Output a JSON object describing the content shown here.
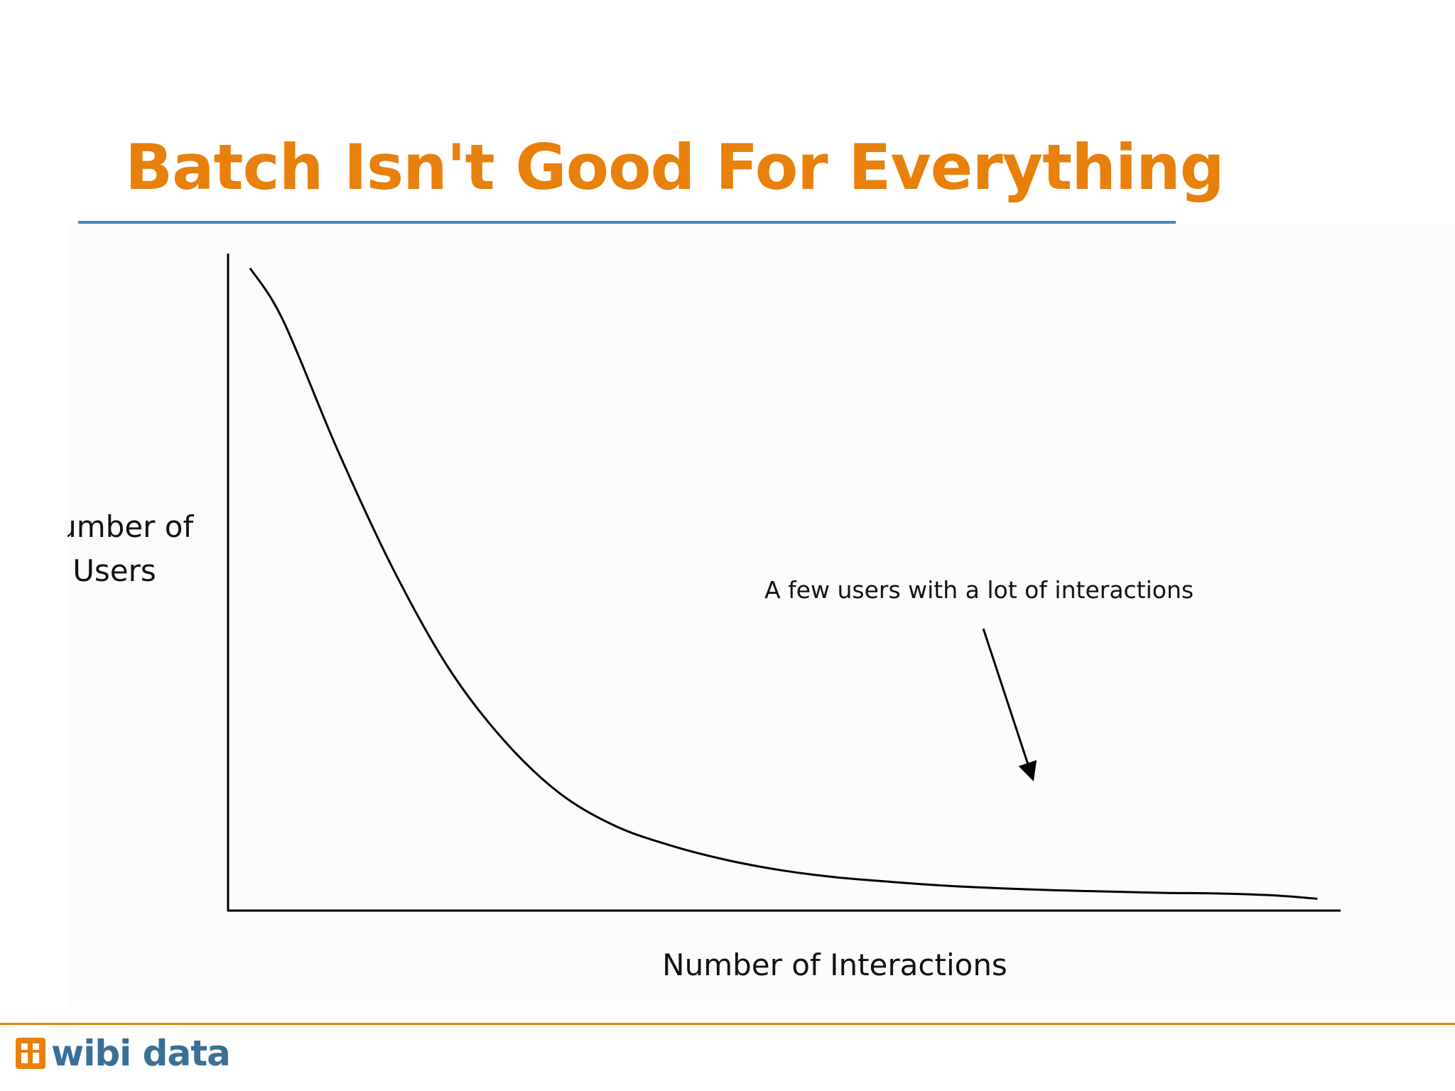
{
  "slide": {
    "title": "Batch Isn't Good For Everything"
  },
  "colors": {
    "title": "#e8800c",
    "title_rule": "#4a86b8",
    "footer_rule": "#e8800c",
    "logo_text": "#3a6f96",
    "logo_mark": "#e8800c",
    "axis": "#000000",
    "curve": "#000000"
  },
  "chart_data": {
    "type": "line",
    "title": "",
    "xlabel": "Number of Interactions",
    "ylabel": "Number of Users",
    "ylabel_lines": [
      "Number of",
      "Users"
    ],
    "xlim": [
      0,
      100
    ],
    "ylim": [
      0,
      100
    ],
    "grid": false,
    "ticks_shown": false,
    "series": [
      {
        "name": "Number of Users",
        "x": [
          2,
          5,
          10,
          15,
          20,
          25,
          30,
          35,
          40,
          45,
          50,
          55,
          60,
          65,
          70,
          75,
          80,
          85,
          90,
          95,
          98.8
        ],
        "y": [
          98,
          90,
          70,
          52,
          37,
          26,
          18,
          13,
          10,
          7.8,
          6.2,
          5.1,
          4.4,
          3.8,
          3.4,
          3.1,
          2.9,
          2.7,
          2.6,
          2.3,
          1.8
        ]
      }
    ],
    "annotations": [
      {
        "text": "A few users with a lot of interactions",
        "arrow_from": [
          68.5,
          43
        ],
        "arrow_to": [
          73,
          20
        ]
      }
    ]
  },
  "footer": {
    "logo_text": "wibi data",
    "logo_icon": "wibidata-logo-icon"
  }
}
